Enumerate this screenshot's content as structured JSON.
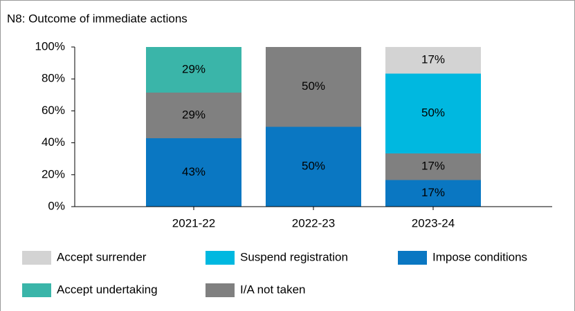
{
  "chart_data": {
    "type": "bar",
    "stacked": true,
    "title": "N8: Outcome of immediate actions",
    "categories": [
      "2021-22",
      "2022-23",
      "2023-24"
    ],
    "series": [
      {
        "name": "Impose conditions",
        "color": "#0a77c2",
        "values": [
          42.86,
          50,
          16.67
        ],
        "value_labels": [
          "43%",
          "50%",
          "17%"
        ]
      },
      {
        "name": "I/A not taken",
        "color": "#808080",
        "values": [
          28.57,
          50,
          16.67
        ],
        "value_labels": [
          "29%",
          "50%",
          "17%"
        ]
      },
      {
        "name": "Accept undertaking",
        "color": "#3ab5a9",
        "values": [
          28.57,
          0,
          0
        ],
        "value_labels": [
          "29%",
          null,
          null
        ]
      },
      {
        "name": "Suspend registration",
        "color": "#00b8e0",
        "values": [
          0,
          0,
          50
        ],
        "value_labels": [
          null,
          null,
          "50%"
        ]
      },
      {
        "name": "Accept surrender",
        "color": "#d3d3d3",
        "values": [
          0,
          0,
          16.67
        ],
        "value_labels": [
          null,
          null,
          "17%"
        ]
      }
    ],
    "ylim": [
      0,
      100
    ],
    "yticks": [
      {
        "value": 0,
        "label": "0%"
      },
      {
        "value": 20,
        "label": "20%"
      },
      {
        "value": 40,
        "label": "40%"
      },
      {
        "value": 60,
        "label": "60%"
      },
      {
        "value": 80,
        "label": "80%"
      },
      {
        "value": 100,
        "label": "100%"
      }
    ]
  }
}
